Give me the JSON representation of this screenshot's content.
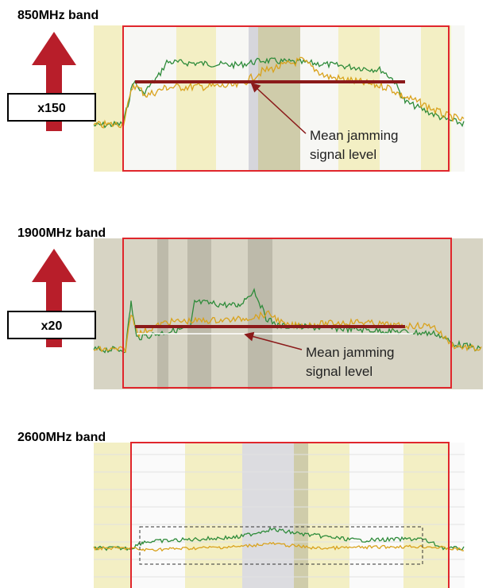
{
  "panels": [
    {
      "title": "850MHz band",
      "factor": "x150",
      "annotation": [
        "Mean jamming",
        "signal level"
      ]
    },
    {
      "title": "1900MHz band",
      "factor": "x20",
      "annotation": [
        "Mean jamming",
        "signal level"
      ]
    },
    {
      "title": "2600MHz band"
    }
  ]
}
